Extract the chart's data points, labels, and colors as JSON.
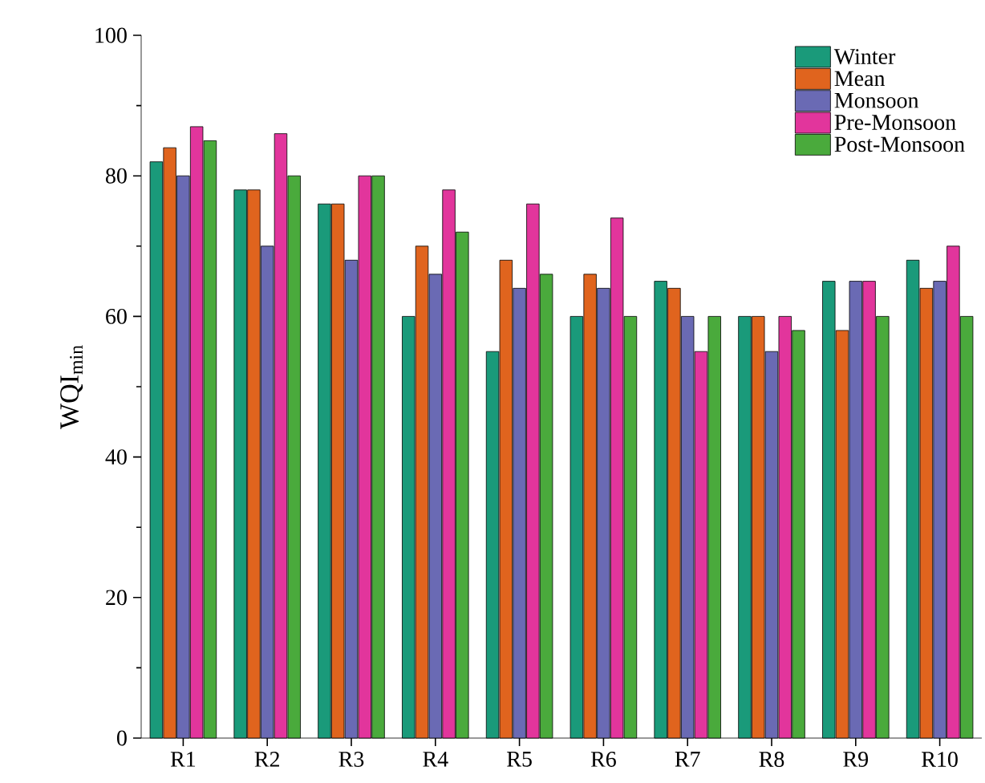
{
  "chart_data": {
    "type": "bar",
    "ylabel": "WQI$_{min}$",
    "categories": [
      "R1",
      "R2",
      "R3",
      "R4",
      "R5",
      "R6",
      "R7",
      "R8",
      "R9",
      "R10"
    ],
    "series": [
      {
        "name": "Winter",
        "color": "#1a9a7a",
        "values": [
          82,
          78,
          76,
          60,
          55,
          60,
          65,
          60,
          65,
          68
        ]
      },
      {
        "name": "Mean",
        "color": "#e0641e",
        "values": [
          84,
          78,
          76,
          70,
          68,
          66,
          64,
          60,
          58,
          64
        ]
      },
      {
        "name": "Monsoon",
        "color": "#6a6ab4",
        "values": [
          80,
          70,
          68,
          66,
          64,
          64,
          60,
          55,
          65,
          65
        ]
      },
      {
        "name": "Pre-Monsoon",
        "color": "#e2359c",
        "values": [
          87,
          86,
          80,
          78,
          76,
          74,
          55,
          60,
          65,
          70
        ]
      },
      {
        "name": "Post-Monsoon",
        "color": "#4aaa3c",
        "values": [
          85,
          80,
          80,
          72,
          66,
          60,
          60,
          58,
          60,
          60
        ]
      }
    ],
    "ylim": [
      0,
      100
    ],
    "yticks": [
      0,
      20,
      40,
      60,
      80,
      100
    ],
    "legend": "top right",
    "grid": false
  }
}
